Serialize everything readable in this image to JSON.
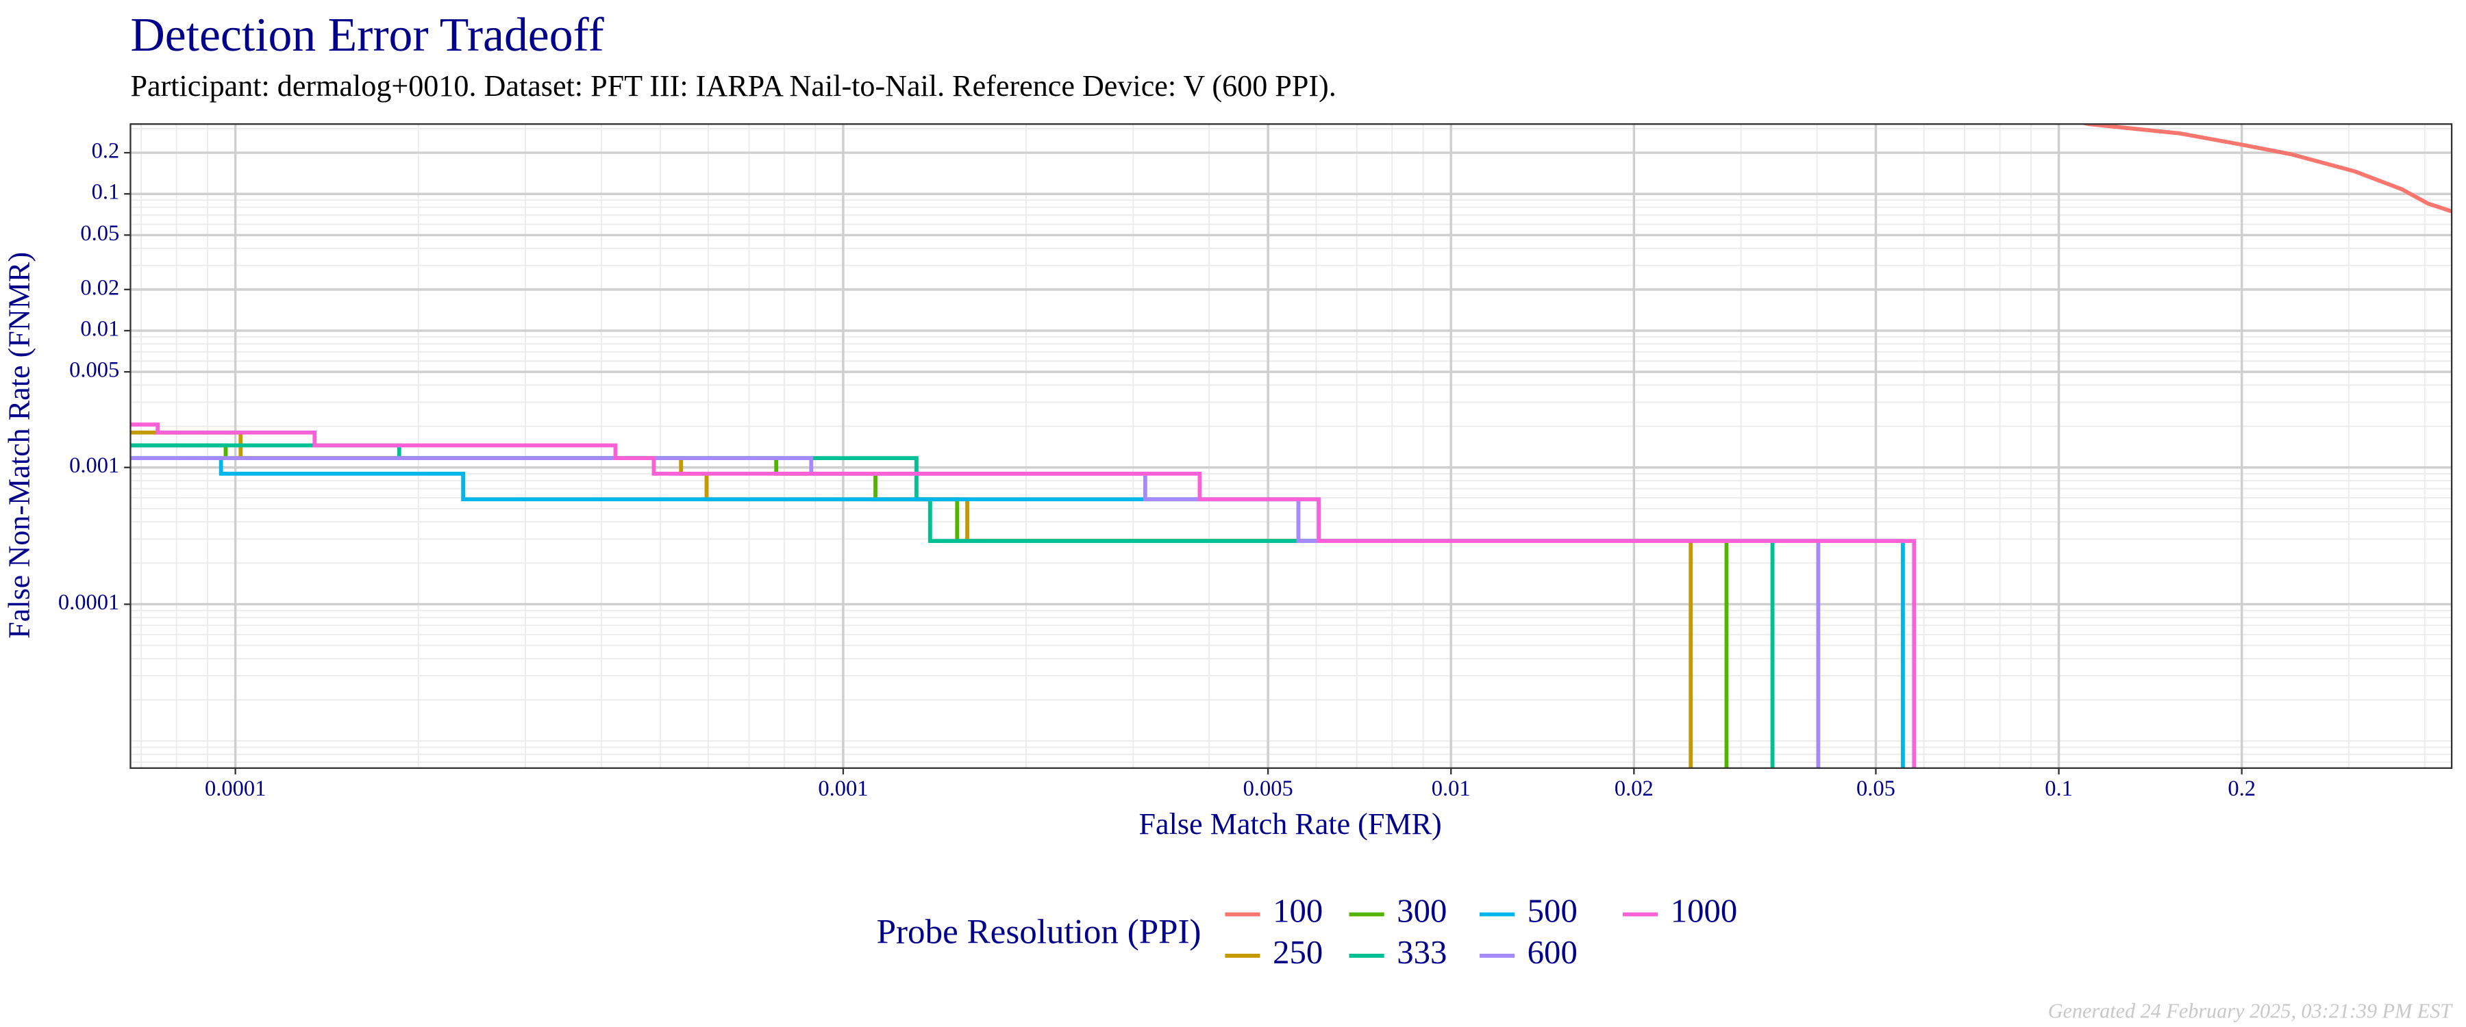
{
  "chart_data": {
    "type": "line",
    "title": "Detection Error Tradeoff",
    "subtitle": "Participant: dermalog+0010. Dataset: PFT III: IARPA Nail-to-Nail. Reference Device: V (600 PPI).",
    "x_label": "False Match Rate (FMR)",
    "y_label": "False Non-Match Rate (FNMR)",
    "x_log": true,
    "y_log": true,
    "grid": true,
    "xlim": [
      6.72e-05,
      0.443
    ],
    "ylim": [
      6.34e-06,
      0.324
    ],
    "xticks": [
      0.0001,
      0.001,
      0.005,
      0.01,
      0.02,
      0.05,
      0.1,
      0.2
    ],
    "yticks": [
      0.0001,
      0.001,
      0.005,
      0.01,
      0.02,
      0.05,
      0.1,
      0.2
    ],
    "legend_title": "Probe Resolution (PPI)",
    "legend_position": "bottom",
    "footer": "Generated 24 February 2025, 03:21:39 PM EST",
    "series": [
      {
        "name": "100",
        "color": "#F8766D",
        "x": [
          0.09,
          0.112,
          0.158,
          0.2,
          0.241,
          0.307,
          0.367,
          0.405,
          0.443
        ],
        "values": [
          0.4,
          0.324,
          0.277,
          0.229,
          0.195,
          0.146,
          0.108,
          0.085,
          0.0745
        ]
      },
      {
        "name": "250",
        "color": "#C49A00",
        "x": [
          6.72e-05,
          0.000102,
          0.000102,
          0.000541,
          0.000541,
          0.000596,
          0.000596,
          0.0016,
          0.0016,
          0.0248,
          0.0248
        ],
        "values": [
          0.0018,
          0.0018,
          0.00117,
          0.00117,
          0.0009,
          0.0009,
          0.000585,
          0.000585,
          0.00029,
          0.00029,
          5e-06
        ]
      },
      {
        "name": "300",
        "color": "#53B400",
        "x": [
          6.72e-05,
          9.64e-05,
          9.64e-05,
          0.000776,
          0.000776,
          0.00113,
          0.00113,
          0.00154,
          0.00154,
          0.0284,
          0.0284
        ],
        "values": [
          0.00145,
          0.00145,
          0.00117,
          0.00117,
          0.0009,
          0.0009,
          0.000585,
          0.000585,
          0.00029,
          0.00029,
          5e-06
        ]
      },
      {
        "name": "333",
        "color": "#00C094",
        "x": [
          6.72e-05,
          0.000186,
          0.000186,
          0.00132,
          0.00132,
          0.00139,
          0.00139,
          0.0338,
          0.0338
        ],
        "values": [
          0.00145,
          0.00145,
          0.00117,
          0.00117,
          0.000585,
          0.000585,
          0.00029,
          0.00029,
          5e-06
        ]
      },
      {
        "name": "500",
        "color": "#00B6EB",
        "x": [
          6.72e-05,
          9.47e-05,
          9.47e-05,
          0.000237,
          0.000237,
          0.00606,
          0.00606,
          0.0554,
          0.0554
        ],
        "values": [
          0.00117,
          0.00117,
          0.0009,
          0.0009,
          0.000585,
          0.000585,
          0.00029,
          0.00029,
          5e-06
        ]
      },
      {
        "name": "600",
        "color": "#A58AFF",
        "x": [
          6.72e-05,
          0.000886,
          0.000886,
          0.00314,
          0.00314,
          0.00561,
          0.00561,
          0.0402,
          0.0402
        ],
        "values": [
          0.00117,
          0.00117,
          0.0009,
          0.0009,
          0.000585,
          0.000585,
          0.00029,
          0.00029,
          5e-06
        ]
      },
      {
        "name": "1000",
        "color": "#FB61D7",
        "x": [
          6.72e-05,
          7.45e-05,
          7.45e-05,
          0.000135,
          0.000135,
          0.000422,
          0.000422,
          0.000488,
          0.000488,
          0.00386,
          0.00386,
          0.00606,
          0.00606,
          0.0578,
          0.0578,
          0.443
        ],
        "values": [
          0.00206,
          0.00206,
          0.0018,
          0.0018,
          0.00145,
          0.00145,
          0.00117,
          0.00117,
          0.0009,
          0.0009,
          0.000585,
          0.000585,
          0.00029,
          0.00029,
          5e-06,
          5e-06
        ]
      }
    ]
  }
}
